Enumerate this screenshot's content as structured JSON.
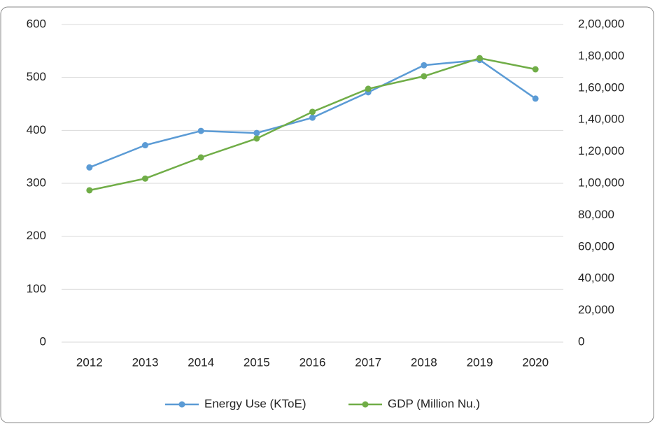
{
  "chart_data": {
    "type": "line",
    "categories": [
      "2012",
      "2013",
      "2014",
      "2015",
      "2016",
      "2017",
      "2018",
      "2019",
      "2020"
    ],
    "series": [
      {
        "name": "Energy Use (KToE)",
        "color": "#5b9bd5",
        "values": [
          330,
          372,
          399,
          395,
          424,
          472,
          523,
          533,
          460
        ]
      },
      {
        "name": "GDP (Million Nu.)",
        "color": "#70ad47",
        "axis": "y2",
        "values": [
          95600,
          103000,
          116300,
          128200,
          145000,
          159500,
          167400,
          178800,
          171800
        ]
      }
    ],
    "ylim": [
      0,
      600
    ],
    "yticks": [
      0,
      100,
      200,
      300,
      400,
      500,
      600
    ],
    "y2lim": [
      0,
      200000
    ],
    "y2ticks": [
      0,
      {
        "value": 20000,
        "label": "20,000"
      },
      {
        "value": 40000,
        "label": "40,000"
      },
      {
        "value": 60000,
        "label": "60,000"
      },
      {
        "value": 80000,
        "label": "80,000"
      },
      {
        "value": 100000,
        "label": "1,00,000"
      },
      {
        "value": 120000,
        "label": "1,20,000"
      },
      {
        "value": 140000,
        "label": "1,40,000"
      },
      {
        "value": 160000,
        "label": "1,60,000"
      },
      {
        "value": 180000,
        "label": "1,80,000"
      },
      {
        "value": 200000,
        "label": "2,00,000"
      }
    ],
    "grid": true,
    "legend": "bottom"
  }
}
